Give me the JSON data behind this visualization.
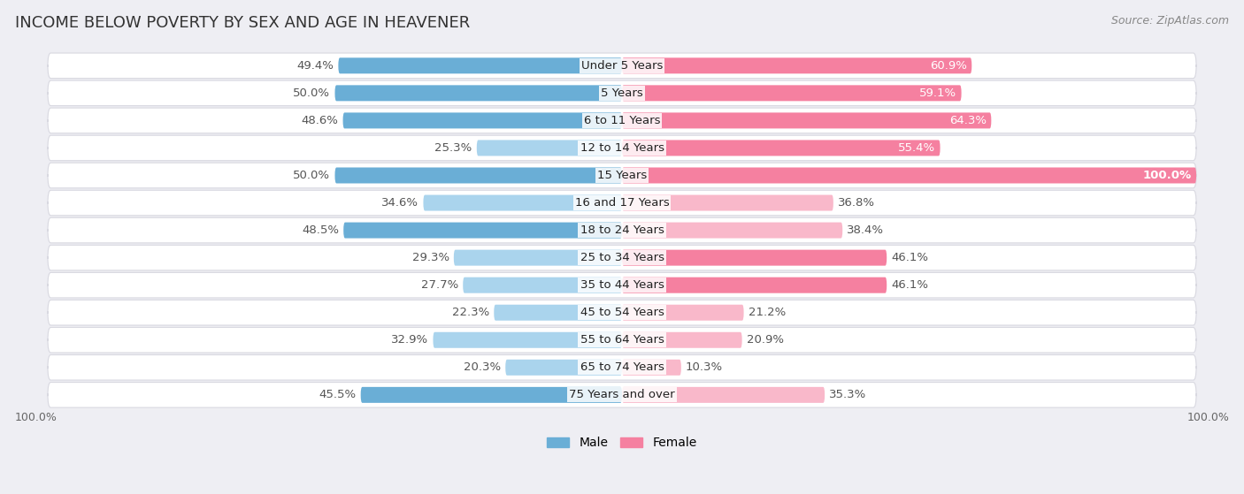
{
  "title": "INCOME BELOW POVERTY BY SEX AND AGE IN HEAVENER",
  "source": "Source: ZipAtlas.com",
  "categories": [
    "Under 5 Years",
    "5 Years",
    "6 to 11 Years",
    "12 to 14 Years",
    "15 Years",
    "16 and 17 Years",
    "18 to 24 Years",
    "25 to 34 Years",
    "35 to 44 Years",
    "45 to 54 Years",
    "55 to 64 Years",
    "65 to 74 Years",
    "75 Years and over"
  ],
  "male_values": [
    49.4,
    50.0,
    48.6,
    25.3,
    50.0,
    34.6,
    48.5,
    29.3,
    27.7,
    22.3,
    32.9,
    20.3,
    45.5
  ],
  "female_values": [
    60.9,
    59.1,
    64.3,
    55.4,
    100.0,
    36.8,
    38.4,
    46.1,
    46.1,
    21.2,
    20.9,
    10.3,
    35.3
  ],
  "male_color": "#6aaed6",
  "female_color": "#f580a0",
  "male_color_light": "#aad4ed",
  "female_color_light": "#f9b8ca",
  "background_color": "#eeeef3",
  "row_bg_color": "#ffffff",
  "row_border_color": "#d8d8e0",
  "male_label": "Male",
  "female_label": "Female",
  "max_value": 100.0,
  "label_fontsize": 9.5,
  "title_fontsize": 13,
  "source_fontsize": 9,
  "axis_label_fontsize": 9,
  "value_label_color_dark": "#555555",
  "value_label_color_white": "#ffffff"
}
